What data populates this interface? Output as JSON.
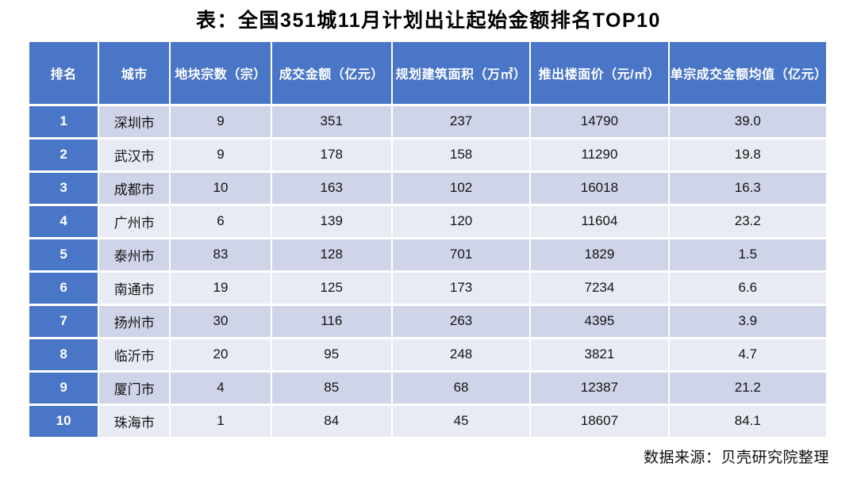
{
  "page": {
    "title": "表：全国351城11月计划出让起始金额排名TOP10",
    "source": "数据来源：贝壳研究院整理"
  },
  "colors": {
    "header_bg": "#4a76c7",
    "band_odd": "#cfd4e8",
    "band_even": "#e9ebf4",
    "header_text": "#ffffff",
    "body_text": "#141414"
  },
  "chart_data": {
    "type": "table",
    "title": "表：全国351城11月计划出让起始金额排名TOP10",
    "source": "数据来源：贝壳研究院整理",
    "columns": [
      "排名",
      "城市",
      "地块宗数（宗）",
      "成交金额（亿元）",
      "规划建筑面积（万㎡）",
      "推出楼面价（元/㎡）",
      "单宗成交金额均值（亿元）"
    ],
    "rows": [
      [
        "1",
        "深圳市",
        "9",
        "351",
        "237",
        "14790",
        "39.0"
      ],
      [
        "2",
        "武汉市",
        "9",
        "178",
        "158",
        "11290",
        "19.8"
      ],
      [
        "3",
        "成都市",
        "10",
        "163",
        "102",
        "16018",
        "16.3"
      ],
      [
        "4",
        "广州市",
        "6",
        "139",
        "120",
        "11604",
        "23.2"
      ],
      [
        "5",
        "泰州市",
        "83",
        "128",
        "701",
        "1829",
        "1.5"
      ],
      [
        "6",
        "南通市",
        "19",
        "125",
        "173",
        "7234",
        "6.6"
      ],
      [
        "7",
        "扬州市",
        "30",
        "116",
        "263",
        "4395",
        "3.9"
      ],
      [
        "8",
        "临沂市",
        "20",
        "95",
        "248",
        "3821",
        "4.7"
      ],
      [
        "9",
        "厦门市",
        "4",
        "85",
        "68",
        "12387",
        "21.2"
      ],
      [
        "10",
        "珠海市",
        "1",
        "84",
        "45",
        "18607",
        "84.1"
      ]
    ]
  }
}
